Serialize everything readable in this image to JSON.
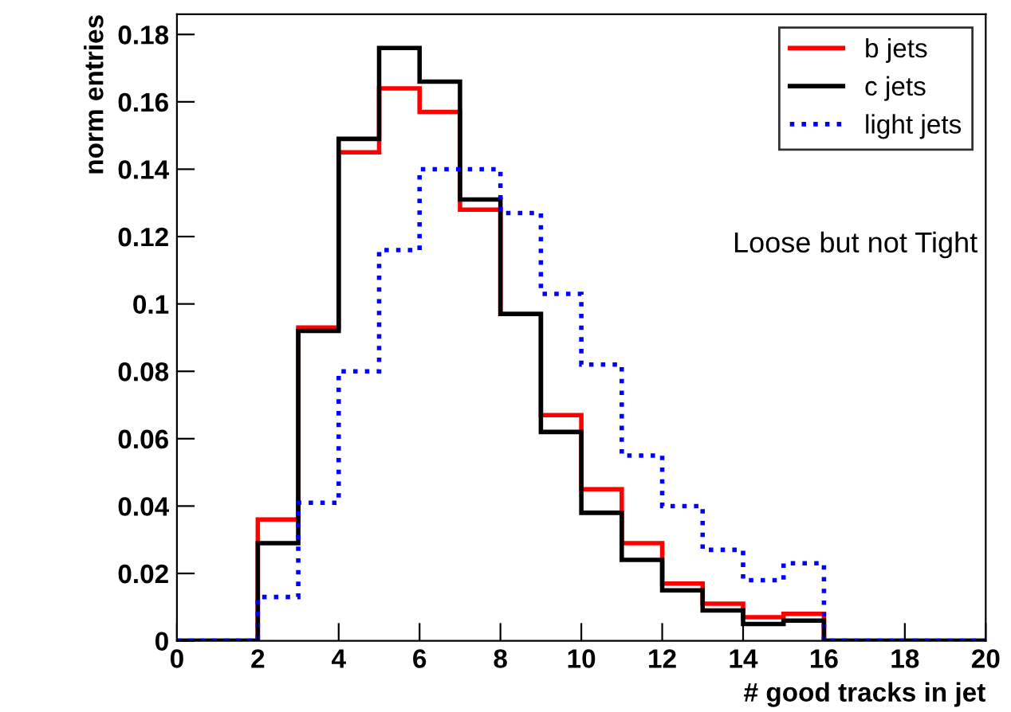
{
  "chart_data": {
    "type": "histogram",
    "xlabel": "# good tracks in jet",
    "ylabel": "norm entries",
    "bins": [
      0,
      1,
      2,
      3,
      4,
      5,
      6,
      7,
      8,
      9,
      10,
      11,
      12,
      13,
      14,
      15,
      16,
      17,
      18,
      19,
      20
    ],
    "series": [
      {
        "name": "b jets",
        "color": "#ff0000",
        "line_style": "solid",
        "values": [
          0,
          0,
          0.036,
          0.093,
          0.145,
          0.164,
          0.157,
          0.128,
          0.097,
          0.067,
          0.045,
          0.029,
          0.017,
          0.011,
          0.007,
          0.008,
          0,
          0,
          0,
          0
        ]
      },
      {
        "name": "c jets",
        "color": "#000000",
        "line_style": "solid",
        "values": [
          0,
          0,
          0.029,
          0.092,
          0.149,
          0.176,
          0.166,
          0.131,
          0.097,
          0.062,
          0.038,
          0.024,
          0.015,
          0.009,
          0.005,
          0.006,
          0,
          0,
          0,
          0
        ]
      },
      {
        "name": "light jets",
        "color": "#0000ff",
        "line_style": "dotted",
        "values": [
          0,
          0,
          0.013,
          0.041,
          0.08,
          0.116,
          0.14,
          0.14,
          0.127,
          0.103,
          0.082,
          0.055,
          0.04,
          0.027,
          0.018,
          0.023,
          0,
          0,
          0,
          0
        ]
      }
    ],
    "xlim": [
      0,
      20
    ],
    "ylim": [
      0,
      0.186
    ],
    "xticks": [
      0,
      2,
      4,
      6,
      8,
      10,
      12,
      14,
      16,
      18,
      20
    ],
    "yticks": [
      0,
      0.02,
      0.04,
      0.06,
      0.08,
      0.1,
      0.12,
      0.14,
      0.16,
      0.18
    ],
    "annotations": [
      "Loose but not Tight"
    ],
    "legend": "top right",
    "grid": false
  }
}
